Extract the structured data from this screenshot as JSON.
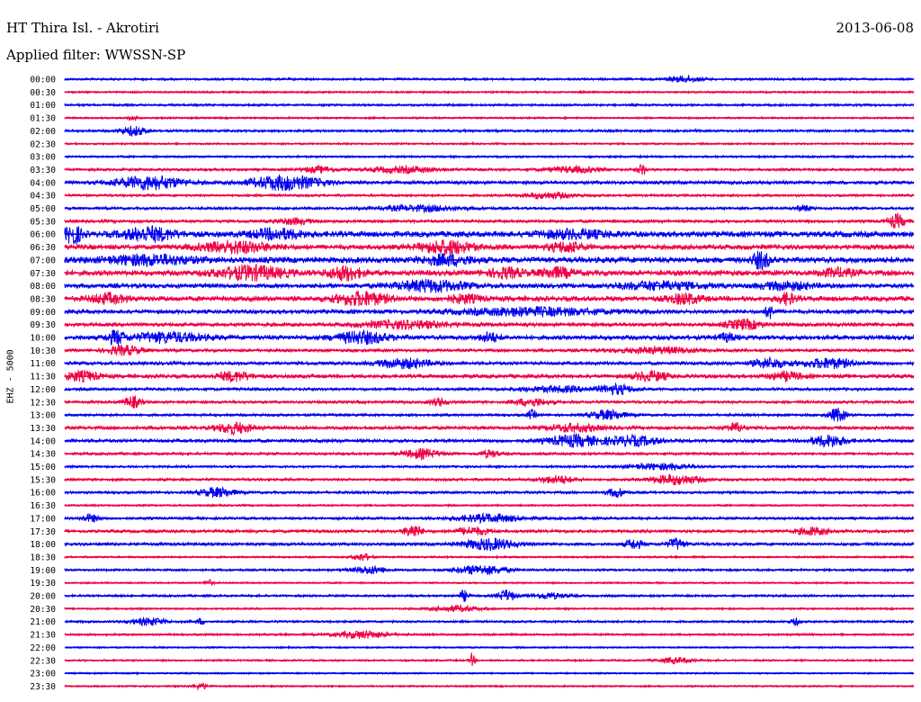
{
  "header": {
    "station": "HT Thira Isl. - Akrotiri",
    "date": "2013-06-08",
    "filter": "Applied filter: WWSSN-SP"
  },
  "chart_data": {
    "type": "line",
    "title": "HT Thira Isl. - Akrotiri",
    "ylabel": "EHZ - 5000",
    "colors": [
      "#0000ee",
      "#ee0044"
    ],
    "grid": false,
    "rows": [
      {
        "label": "00:00",
        "noise": 1.2,
        "bursts": [
          [
            0.73,
            0.02,
            3
          ]
        ]
      },
      {
        "label": "00:30",
        "noise": 1.0,
        "bursts": []
      },
      {
        "label": "01:00",
        "noise": 1.2,
        "bursts": []
      },
      {
        "label": "01:30",
        "noise": 1.0,
        "bursts": [
          [
            0.08,
            0.005,
            3
          ]
        ]
      },
      {
        "label": "02:00",
        "noise": 1.3,
        "bursts": [
          [
            0.08,
            0.015,
            5
          ]
        ]
      },
      {
        "label": "02:30",
        "noise": 1.0,
        "bursts": []
      },
      {
        "label": "03:00",
        "noise": 1.1,
        "bursts": []
      },
      {
        "label": "03:30",
        "noise": 1.4,
        "bursts": [
          [
            0.3,
            0.02,
            3
          ],
          [
            0.4,
            0.04,
            3
          ],
          [
            0.6,
            0.03,
            3
          ],
          [
            0.68,
            0.005,
            6
          ]
        ]
      },
      {
        "label": "04:00",
        "noise": 1.8,
        "bursts": [
          [
            0.1,
            0.04,
            7
          ],
          [
            0.26,
            0.04,
            8
          ]
        ]
      },
      {
        "label": "04:30",
        "noise": 1.3,
        "bursts": [
          [
            0.57,
            0.03,
            3
          ]
        ]
      },
      {
        "label": "05:00",
        "noise": 1.4,
        "bursts": [
          [
            0.42,
            0.05,
            3
          ],
          [
            0.87,
            0.01,
            3
          ]
        ]
      },
      {
        "label": "05:30",
        "noise": 1.6,
        "bursts": [
          [
            0.27,
            0.02,
            3
          ],
          [
            0.98,
            0.01,
            7
          ]
        ]
      },
      {
        "label": "06:00",
        "noise": 3.0,
        "bursts": [
          [
            0.01,
            0.01,
            10
          ],
          [
            0.1,
            0.03,
            7
          ],
          [
            0.25,
            0.03,
            5
          ],
          [
            0.6,
            0.04,
            4
          ]
        ]
      },
      {
        "label": "06:30",
        "noise": 2.6,
        "bursts": [
          [
            0.2,
            0.04,
            6
          ],
          [
            0.45,
            0.03,
            7
          ],
          [
            0.59,
            0.02,
            5
          ]
        ]
      },
      {
        "label": "07:00",
        "noise": 3.0,
        "bursts": [
          [
            0.1,
            0.05,
            5
          ],
          [
            0.45,
            0.03,
            5
          ],
          [
            0.82,
            0.01,
            9
          ]
        ]
      },
      {
        "label": "07:30",
        "noise": 2.8,
        "bursts": [
          [
            0.22,
            0.04,
            7
          ],
          [
            0.33,
            0.02,
            7
          ],
          [
            0.52,
            0.02,
            5
          ],
          [
            0.58,
            0.02,
            5
          ],
          [
            0.91,
            0.02,
            4
          ]
        ]
      },
      {
        "label": "08:00",
        "noise": 2.4,
        "bursts": [
          [
            0.43,
            0.04,
            6
          ],
          [
            0.7,
            0.05,
            4
          ],
          [
            0.85,
            0.03,
            4
          ]
        ]
      },
      {
        "label": "08:30",
        "noise": 2.6,
        "bursts": [
          [
            0.05,
            0.02,
            5
          ],
          [
            0.35,
            0.03,
            7
          ],
          [
            0.47,
            0.02,
            4
          ],
          [
            0.73,
            0.02,
            5
          ],
          [
            0.85,
            0.01,
            6
          ]
        ]
      },
      {
        "label": "09:00",
        "noise": 2.2,
        "bursts": [
          [
            0.55,
            0.08,
            4
          ],
          [
            0.83,
            0.005,
            7
          ]
        ]
      },
      {
        "label": "09:30",
        "noise": 2.0,
        "bursts": [
          [
            0.4,
            0.05,
            4
          ],
          [
            0.8,
            0.02,
            5
          ]
        ]
      },
      {
        "label": "10:00",
        "noise": 2.4,
        "bursts": [
          [
            0.06,
            0.01,
            7
          ],
          [
            0.12,
            0.04,
            5
          ],
          [
            0.35,
            0.03,
            6
          ],
          [
            0.5,
            0.01,
            5
          ],
          [
            0.78,
            0.01,
            4
          ]
        ]
      },
      {
        "label": "10:30",
        "noise": 1.6,
        "bursts": [
          [
            0.07,
            0.02,
            5
          ],
          [
            0.7,
            0.05,
            3
          ]
        ]
      },
      {
        "label": "11:00",
        "noise": 1.8,
        "bursts": [
          [
            0.4,
            0.03,
            5
          ],
          [
            0.83,
            0.02,
            5
          ],
          [
            0.9,
            0.03,
            5
          ]
        ]
      },
      {
        "label": "11:30",
        "noise": 2.0,
        "bursts": [
          [
            0.02,
            0.02,
            5
          ],
          [
            0.2,
            0.02,
            5
          ],
          [
            0.69,
            0.02,
            5
          ],
          [
            0.85,
            0.02,
            4
          ]
        ]
      },
      {
        "label": "12:00",
        "noise": 1.5,
        "bursts": [
          [
            0.58,
            0.04,
            3
          ],
          [
            0.65,
            0.02,
            5
          ]
        ]
      },
      {
        "label": "12:30",
        "noise": 1.5,
        "bursts": [
          [
            0.08,
            0.01,
            6
          ],
          [
            0.44,
            0.01,
            4
          ],
          [
            0.55,
            0.02,
            4
          ]
        ]
      },
      {
        "label": "13:00",
        "noise": 1.4,
        "bursts": [
          [
            0.55,
            0.005,
            5
          ],
          [
            0.64,
            0.02,
            5
          ],
          [
            0.91,
            0.01,
            7
          ]
        ]
      },
      {
        "label": "13:30",
        "noise": 1.8,
        "bursts": [
          [
            0.2,
            0.02,
            6
          ],
          [
            0.6,
            0.03,
            4
          ],
          [
            0.79,
            0.01,
            5
          ]
        ]
      },
      {
        "label": "14:00",
        "noise": 1.8,
        "bursts": [
          [
            0.6,
            0.03,
            6
          ],
          [
            0.67,
            0.03,
            5
          ],
          [
            0.9,
            0.02,
            6
          ]
        ]
      },
      {
        "label": "14:30",
        "noise": 1.4,
        "bursts": [
          [
            0.42,
            0.02,
            5
          ],
          [
            0.5,
            0.01,
            4
          ]
        ]
      },
      {
        "label": "15:00",
        "noise": 1.2,
        "bursts": [
          [
            0.7,
            0.04,
            3
          ]
        ]
      },
      {
        "label": "15:30",
        "noise": 1.4,
        "bursts": [
          [
            0.58,
            0.02,
            4
          ],
          [
            0.72,
            0.03,
            5
          ]
        ]
      },
      {
        "label": "16:00",
        "noise": 1.4,
        "bursts": [
          [
            0.18,
            0.02,
            5
          ],
          [
            0.65,
            0.01,
            5
          ]
        ]
      },
      {
        "label": "16:30",
        "noise": 1.0,
        "bursts": []
      },
      {
        "label": "17:00",
        "noise": 1.4,
        "bursts": [
          [
            0.03,
            0.01,
            4
          ],
          [
            0.5,
            0.04,
            4
          ]
        ]
      },
      {
        "label": "17:30",
        "noise": 1.6,
        "bursts": [
          [
            0.41,
            0.01,
            7
          ],
          [
            0.48,
            0.02,
            4
          ],
          [
            0.88,
            0.02,
            4
          ]
        ]
      },
      {
        "label": "18:00",
        "noise": 1.6,
        "bursts": [
          [
            0.5,
            0.03,
            6
          ],
          [
            0.67,
            0.01,
            5
          ],
          [
            0.72,
            0.01,
            6
          ]
        ]
      },
      {
        "label": "18:30",
        "noise": 1.0,
        "bursts": [
          [
            0.35,
            0.01,
            4
          ]
        ]
      },
      {
        "label": "19:00",
        "noise": 1.2,
        "bursts": [
          [
            0.36,
            0.02,
            4
          ],
          [
            0.49,
            0.03,
            5
          ]
        ]
      },
      {
        "label": "19:30",
        "noise": 0.9,
        "bursts": [
          [
            0.17,
            0.005,
            3
          ]
        ]
      },
      {
        "label": "20:00",
        "noise": 1.2,
        "bursts": [
          [
            0.47,
            0.005,
            6
          ],
          [
            0.52,
            0.01,
            6
          ],
          [
            0.57,
            0.02,
            3
          ]
        ]
      },
      {
        "label": "20:30",
        "noise": 1.0,
        "bursts": [
          [
            0.46,
            0.03,
            3
          ]
        ]
      },
      {
        "label": "21:00",
        "noise": 1.2,
        "bursts": [
          [
            0.1,
            0.02,
            4
          ],
          [
            0.16,
            0.005,
            3
          ],
          [
            0.86,
            0.005,
            4
          ]
        ]
      },
      {
        "label": "21:30",
        "noise": 1.1,
        "bursts": [
          [
            0.35,
            0.03,
            4
          ]
        ]
      },
      {
        "label": "22:00",
        "noise": 0.9,
        "bursts": []
      },
      {
        "label": "22:30",
        "noise": 1.0,
        "bursts": [
          [
            0.48,
            0.003,
            7
          ],
          [
            0.72,
            0.02,
            3
          ]
        ]
      },
      {
        "label": "23:00",
        "noise": 0.9,
        "bursts": []
      },
      {
        "label": "23:30",
        "noise": 0.9,
        "bursts": [
          [
            0.16,
            0.01,
            3
          ]
        ]
      }
    ]
  }
}
